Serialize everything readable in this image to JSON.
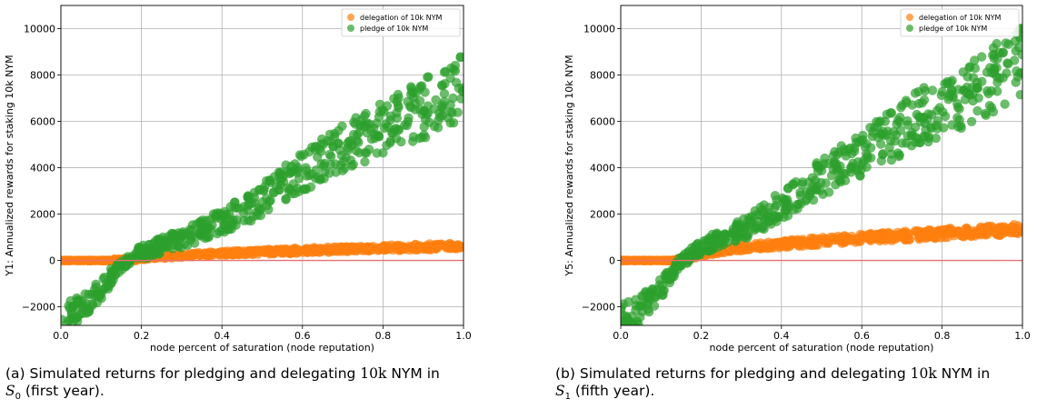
{
  "chart_data": [
    {
      "type": "scatter",
      "xlabel": "node percent of saturation (node reputation)",
      "ylabel": "Y1: Annualized rewards for staking 10k NYM",
      "xlim": [
        0.0,
        1.0
      ],
      "ylim": [
        -2800,
        11000
      ],
      "xticks": [
        "0.0",
        "0.2",
        "0.4",
        "0.6",
        "0.8",
        "1.0"
      ],
      "yticks": [
        "−2000",
        "0",
        "2000",
        "4000",
        "6000",
        "8000",
        "10000"
      ],
      "grid": true,
      "legend_position": "top-right",
      "reference_line": {
        "y": 0,
        "color": "#e87070"
      },
      "series": [
        {
          "name": "delegation of 10k NYM",
          "color": "#ff7f0e",
          "points": [
            [
              0.0,
              0
            ],
            [
              0.05,
              0
            ],
            [
              0.1,
              0
            ],
            [
              0.13,
              0
            ],
            [
              0.16,
              20
            ],
            [
              0.2,
              90
            ],
            [
              0.25,
              160
            ],
            [
              0.3,
              210
            ],
            [
              0.35,
              260
            ],
            [
              0.4,
              300
            ],
            [
              0.45,
              340
            ],
            [
              0.5,
              370
            ],
            [
              0.55,
              400
            ],
            [
              0.6,
              430
            ],
            [
              0.65,
              460
            ],
            [
              0.7,
              480
            ],
            [
              0.75,
              510
            ],
            [
              0.8,
              530
            ],
            [
              0.85,
              560
            ],
            [
              0.9,
              580
            ],
            [
              0.95,
              600
            ],
            [
              1.0,
              620
            ]
          ]
        },
        {
          "name": "pledge of 10k NYM",
          "color": "#2ca02c",
          "points": [
            [
              0.0,
              -2500
            ],
            [
              0.05,
              -2100
            ],
            [
              0.1,
              -1300
            ],
            [
              0.14,
              -300
            ],
            [
              0.18,
              200
            ],
            [
              0.22,
              450
            ],
            [
              0.26,
              750
            ],
            [
              0.3,
              950
            ],
            [
              0.35,
              1300
            ],
            [
              0.4,
              1700
            ],
            [
              0.45,
              2100
            ],
            [
              0.5,
              2600
            ],
            [
              0.55,
              3300
            ],
            [
              0.6,
              3800
            ],
            [
              0.65,
              4400
            ],
            [
              0.7,
              4900
            ],
            [
              0.75,
              5300
            ],
            [
              0.8,
              5700
            ],
            [
              0.85,
              6100
            ],
            [
              0.9,
              6500
            ],
            [
              0.95,
              7200
            ],
            [
              1.0,
              7400
            ]
          ]
        }
      ]
    },
    {
      "type": "scatter",
      "xlabel": "node percent of saturation (node reputation)",
      "ylabel": "Y5: Annualized rewards for staking 10k NYM",
      "xlim": [
        0.0,
        1.0
      ],
      "ylim": [
        -2800,
        11000
      ],
      "xticks": [
        "0.0",
        "0.2",
        "0.4",
        "0.6",
        "0.8",
        "1.0"
      ],
      "yticks": [
        "−2000",
        "0",
        "2000",
        "4000",
        "6000",
        "8000",
        "10000"
      ],
      "grid": true,
      "legend_position": "top-right",
      "reference_line": {
        "y": 0,
        "color": "#e87070"
      },
      "series": [
        {
          "name": "delegation of 10k NYM",
          "color": "#ff7f0e",
          "points": [
            [
              0.0,
              0
            ],
            [
              0.05,
              0
            ],
            [
              0.1,
              0
            ],
            [
              0.13,
              0
            ],
            [
              0.16,
              50
            ],
            [
              0.2,
              280
            ],
            [
              0.25,
              420
            ],
            [
              0.3,
              540
            ],
            [
              0.35,
              630
            ],
            [
              0.4,
              700
            ],
            [
              0.45,
              770
            ],
            [
              0.5,
              840
            ],
            [
              0.55,
              900
            ],
            [
              0.6,
              960
            ],
            [
              0.65,
              1010
            ],
            [
              0.7,
              1060
            ],
            [
              0.75,
              1110
            ],
            [
              0.8,
              1170
            ],
            [
              0.85,
              1210
            ],
            [
              0.9,
              1260
            ],
            [
              0.95,
              1310
            ],
            [
              1.0,
              1360
            ]
          ]
        },
        {
          "name": "pledge of 10k NYM",
          "color": "#2ca02c",
          "points": [
            [
              0.0,
              -2600
            ],
            [
              0.05,
              -2100
            ],
            [
              0.1,
              -1200
            ],
            [
              0.14,
              -200
            ],
            [
              0.18,
              300
            ],
            [
              0.22,
              700
            ],
            [
              0.26,
              1000
            ],
            [
              0.3,
              1300
            ],
            [
              0.35,
              1800
            ],
            [
              0.4,
              2400
            ],
            [
              0.45,
              3000
            ],
            [
              0.5,
              3600
            ],
            [
              0.55,
              4100
            ],
            [
              0.6,
              4600
            ],
            [
              0.65,
              5200
            ],
            [
              0.7,
              5700
            ],
            [
              0.75,
              6200
            ],
            [
              0.8,
              6700
            ],
            [
              0.85,
              7100
            ],
            [
              0.9,
              7600
            ],
            [
              0.95,
              8200
            ],
            [
              1.0,
              8600
            ]
          ]
        }
      ]
    }
  ],
  "captions": [
    {
      "pre": "(a) Simulated returns for pledging and delegating ",
      "num": "10k",
      "mid": " NYM in",
      "sym": "S",
      "sub": "0",
      "post": " (first year)."
    },
    {
      "pre": "(b) Simulated returns for pledging and delegating ",
      "num": "10k",
      "mid": " NYM in",
      "sym": "S",
      "sub": "1",
      "post": " (fifth year)."
    }
  ]
}
